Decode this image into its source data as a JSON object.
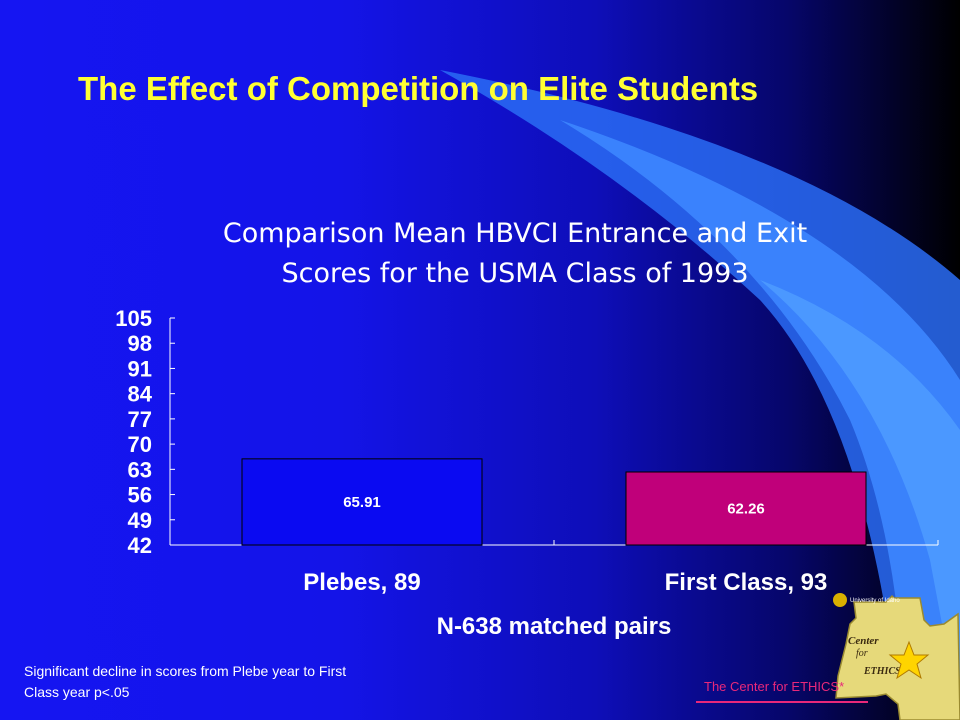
{
  "slide": {
    "title": "The Effect of Competition on Elite Students",
    "footnote_line1": "Significant decline in scores from Plebe year to First",
    "footnote_line2": "Class year p<.05",
    "credit": "The Center for ETHICS*",
    "logo_text": {
      "university": "University of Idaho",
      "center": "Center",
      "for": "for",
      "ethics": "ETHICS*"
    }
  },
  "colors": {
    "title": "#ffff33",
    "bar_plebes": "#0a0af2",
    "bar_first_class": "#c0007a",
    "credit": "#e8287a",
    "axis": "#ffffff"
  },
  "chart_data": {
    "type": "bar",
    "title_line1": "Comparison Mean HBVCI Entrance and Exit",
    "title_line2": "Scores for the USMA Class of 1993",
    "categories": [
      "Plebes, 89",
      "First Class, 93"
    ],
    "values": [
      65.91,
      62.26
    ],
    "value_labels": [
      "65.91",
      "62.26"
    ],
    "bar_colors": [
      "#0a0af2",
      "#c0007a"
    ],
    "xlabel": "N-638 matched pairs",
    "ylabel": "",
    "ylim": [
      42,
      105
    ],
    "yticks": [
      105,
      98,
      91,
      84,
      77,
      70,
      63,
      56,
      49,
      42
    ],
    "grid": false,
    "legend": "none"
  }
}
